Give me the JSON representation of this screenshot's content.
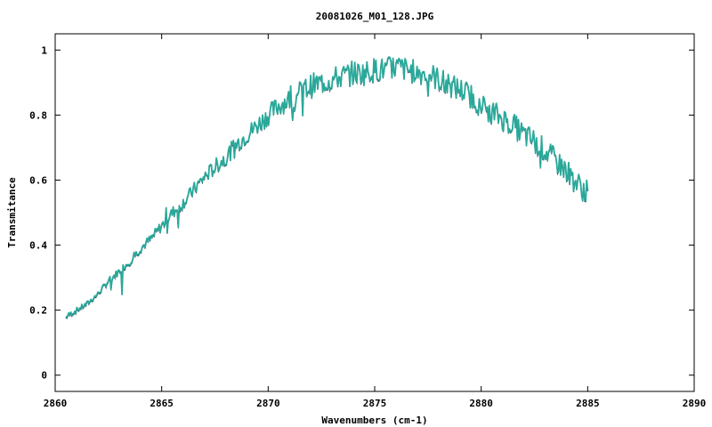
{
  "chart_data": {
    "type": "line",
    "title": "20081026_M01_128.JPG",
    "xlabel": "Wavenumbers (cm-1)",
    "ylabel": "Transmitance",
    "xlim": [
      2860,
      2890
    ],
    "ylim": [
      -0.05,
      1.05
    ],
    "x_ticks": [
      2860,
      2865,
      2870,
      2875,
      2880,
      2885,
      2890
    ],
    "y_ticks": [
      0,
      0.2,
      0.4,
      0.6,
      0.8,
      1
    ],
    "y_tick_labels": [
      "0",
      "0.2",
      "0.4",
      "0.6",
      "0.8",
      "1"
    ],
    "grid": false,
    "colors": {
      "line": "#2aa89a",
      "line_shadow": "#1f4f5a"
    },
    "series": [
      {
        "x": [
          2860.5,
          2861.0,
          2861.5,
          2862.0,
          2862.5,
          2863.0,
          2863.5,
          2864.0,
          2864.5,
          2865.0,
          2865.5,
          2866.0,
          2866.5,
          2867.0,
          2867.5,
          2868.0,
          2868.5,
          2869.0,
          2869.5,
          2870.0,
          2870.5,
          2871.0,
          2871.5,
          2872.0,
          2872.5,
          2873.0,
          2873.5,
          2874.0,
          2874.5,
          2875.0,
          2875.5,
          2876.0,
          2876.5,
          2877.0,
          2877.5,
          2878.0,
          2878.5,
          2879.0,
          2879.5,
          2880.0,
          2880.5,
          2881.0,
          2881.5,
          2882.0,
          2882.5,
          2883.0,
          2883.5,
          2884.0,
          2884.5,
          2885.0
        ],
        "y": [
          0.18,
          0.2,
          0.22,
          0.25,
          0.29,
          0.32,
          0.35,
          0.39,
          0.42,
          0.46,
          0.5,
          0.53,
          0.57,
          0.61,
          0.64,
          0.67,
          0.71,
          0.74,
          0.77,
          0.8,
          0.83,
          0.85,
          0.87,
          0.89,
          0.9,
          0.91,
          0.92,
          0.93,
          0.93,
          0.94,
          0.94,
          0.95,
          0.94,
          0.93,
          0.93,
          0.91,
          0.89,
          0.88,
          0.86,
          0.83,
          0.81,
          0.79,
          0.77,
          0.74,
          0.72,
          0.69,
          0.66,
          0.63,
          0.59,
          0.56
        ]
      }
    ]
  }
}
